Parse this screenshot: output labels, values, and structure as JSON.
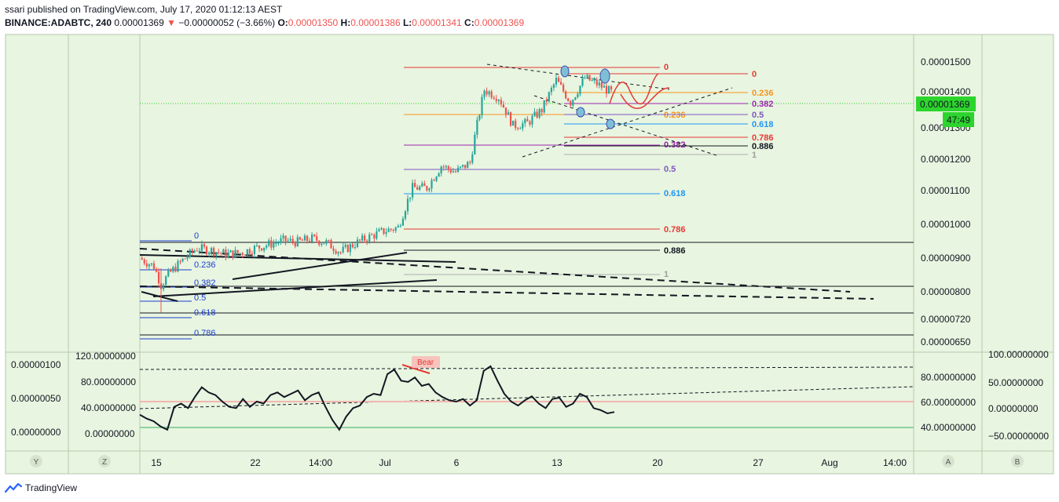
{
  "header": {
    "published": "ssari published on TradingView.com, July 17, 2020 01:12:13 AEST",
    "symbol": "BINANCE:ADABTC, 240",
    "last": "0.00001369",
    "change": "−0.00000052 (−3.66%)",
    "o_label": "O:",
    "o": "0.00001350",
    "h_label": "H:",
    "h": "0.00001386",
    "l_label": "L:",
    "l": "0.00001341",
    "c_label": "C:",
    "c": "0.00001369",
    "down_icon": "triangle-down-icon"
  },
  "footer": {
    "brand": "TradingView",
    "logo_icon": "tradingview-logo-icon"
  },
  "colors": {
    "background": "#e8f5e0",
    "up": "#26a69a",
    "down": "#ef5350",
    "last_price_bg": "#2dd42d",
    "fib_red": "#e53935",
    "fib_orange": "#f7941d",
    "fib_purple": "#9c27b0",
    "fib_blue": "#2196f3",
    "fib_grey": "#9e9e9e"
  },
  "axis": {
    "price_ticks": [
      "0.00001500",
      "0.00001400",
      "0.00001300",
      "0.00001200",
      "0.00001100",
      "0.00001000",
      "0.00000900",
      "0.00000800",
      "0.00000720",
      "0.00000650"
    ],
    "last_price_label": "0.00001369",
    "countdown_label": "47:49",
    "time_ticks": [
      "15",
      "22",
      "14:00",
      "Jul",
      "6",
      "13",
      "20",
      "27",
      "Aug",
      "14:00"
    ],
    "left_bottom_labels": [
      "Y",
      "Z"
    ],
    "right_bottom_labels": [
      "A",
      "B"
    ],
    "indicator_left_outer": [
      "0.00000100",
      "0.00000050",
      "0.00000000"
    ],
    "indicator_left_inner": [
      "120.00000000",
      "80.00000000",
      "40.00000000",
      "0.00000000"
    ],
    "indicator_right_inner": [
      "80.00000000",
      "60.00000000",
      "40.00000000"
    ],
    "indicator_right_outer": [
      "100.00000000",
      "50.00000000",
      "0.00000000",
      "−50.00000000"
    ]
  },
  "annotations": {
    "bear_label": "Bear"
  },
  "fib_labels": {
    "big_upper": [
      "0",
      "0.236",
      "0.382",
      "0.5",
      "0.618",
      "0.786",
      "0.886",
      "1"
    ],
    "small_upper": [
      "0",
      "0.236",
      "0.382",
      "0.5",
      "0.618",
      "0.786",
      "0.886",
      "1"
    ],
    "lower_blue": [
      "0",
      "0.236",
      "0.382",
      "0.5",
      "0.618",
      "0.786"
    ]
  },
  "chart_data": {
    "type": "candlestick",
    "title": "",
    "symbol": "BINANCE:ADABTC",
    "interval": "240",
    "ylim": [
      6.3e-06,
      1.57e-05
    ],
    "y_scale": "log",
    "x_range": [
      "Jun 14 2020",
      "Aug 5 2020"
    ],
    "close_path": [
      [
        "Jun 14",
        8.35e-06
      ],
      [
        "Jun 15",
        8.15e-06
      ],
      [
        "Jun 15 12:00",
        7.7e-06
      ],
      [
        "Jun 16",
        7.95e-06
      ],
      [
        "Jun 17",
        8.3e-06
      ],
      [
        "Jun 18",
        8.6e-06
      ],
      [
        "Jun 19",
        8.55e-06
      ],
      [
        "Jun 20",
        8.45e-06
      ],
      [
        "Jun 21",
        8.48e-06
      ],
      [
        "Jun 22",
        8.6e-06
      ],
      [
        "Jun 23",
        8.7e-06
      ],
      [
        "Jun 24",
        8.8e-06
      ],
      [
        "Jun 25",
        8.76e-06
      ],
      [
        "Jun 26",
        8.85e-06
      ],
      [
        "Jun 27",
        8.75e-06
      ],
      [
        "Jun 28",
        8.5e-06
      ],
      [
        "Jun 29",
        8.72e-06
      ],
      [
        "Jun 30",
        8.9e-06
      ],
      [
        "Jul 1",
        9.05e-06
      ],
      [
        "Jul 2",
        9.15e-06
      ],
      [
        "Jul 3",
        1.03e-05
      ],
      [
        "Jul 4",
        1.03e-05
      ],
      [
        "Jul 5",
        1.1e-05
      ],
      [
        "Jul 6",
        1.08e-05
      ],
      [
        "Jul 7",
        1.11e-05
      ],
      [
        "Jul 8",
        1.38e-05
      ],
      [
        "Jul 9",
        1.35e-05
      ],
      [
        "Jul 10",
        1.24e-05
      ],
      [
        "Jul 11",
        1.25e-05
      ],
      [
        "Jul 12",
        1.3e-05
      ],
      [
        "Jul 13",
        1.42e-05
      ],
      [
        "Jul 14",
        1.33e-05
      ],
      [
        "Jul 15",
        1.43e-05
      ],
      [
        "Jul 16",
        1.4e-05
      ],
      [
        "Jul 16 20:00",
        1.369e-05
      ]
    ],
    "last": {
      "o": 1.35e-05,
      "h": 1.386e-05,
      "l": 1.341e-05,
      "c": 1.369e-05
    },
    "fib_big_upper": {
      "0": 1.485e-05,
      "0.236": 1.335e-05,
      "0.382": 1.245e-05,
      "0.5": 1.17e-05,
      "0.618": 1.095e-05,
      "0.786": 9.9e-06,
      "0.886": 9.25e-06,
      "1": 8.5e-06
    },
    "fib_small_upper": {
      "0": 1.465e-05,
      "0.236": 1.405e-05,
      "0.382": 1.37e-05,
      "0.5": 1.34e-05,
      "0.618": 1.31e-05,
      "0.786": 1.265e-05,
      "0.886": 1.24e-05,
      "1": 1.215e-05
    },
    "horizontal_levels": [
      9.5e-06,
      8.15e-06,
      7.25e-06,
      6.6e-06
    ],
    "indicator": {
      "type": "line",
      "ylim": [
        -10,
        125
      ],
      "values": [
        28,
        22,
        18,
        10,
        5,
        40,
        45,
        38,
        55,
        70,
        62,
        58,
        48,
        40,
        38,
        52,
        40,
        48,
        45,
        58,
        62,
        55,
        60,
        65,
        50,
        58,
        62,
        40,
        20,
        5,
        25,
        38,
        42,
        55,
        60,
        58,
        90,
        97,
        80,
        78,
        85,
        72,
        75,
        62,
        55,
        50,
        48,
        52,
        42,
        50,
        95,
        102,
        80,
        60,
        48,
        42,
        50,
        56,
        45,
        38,
        52,
        54,
        40,
        45,
        60,
        55,
        38,
        35,
        30,
        32
      ],
      "reference_lines": [
        80,
        40,
        0
      ]
    }
  }
}
